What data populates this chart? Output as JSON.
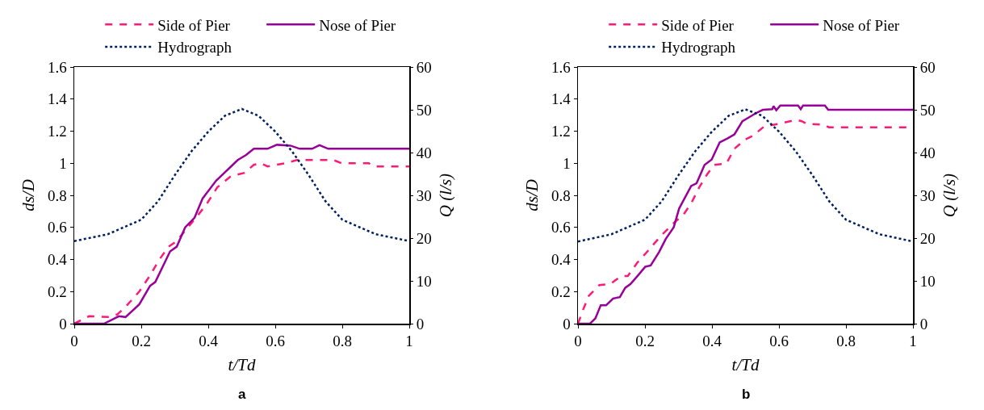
{
  "chart_data": [
    {
      "type": "line",
      "xlabel": "t/Td",
      "ylabel": "ds/D",
      "y2label": "Q (l/s)",
      "annotations": [
        "a"
      ],
      "xlim": [
        0,
        1
      ],
      "xticks": [
        0,
        0.2,
        0.4,
        0.6,
        0.8,
        1
      ],
      "ylim": [
        0,
        1.6
      ],
      "yticks": [
        0,
        0.2,
        0.4,
        0.6,
        0.8,
        1,
        1.2,
        1.4,
        1.6
      ],
      "y2lim": [
        0,
        60
      ],
      "y2ticks": [
        0,
        10,
        20,
        30,
        40,
        50,
        60
      ],
      "grid": false,
      "legend": "top",
      "marker": "none",
      "series": [
        {
          "name": "Side of Pier",
          "color": "#ff1a75",
          "line_style": "dashed",
          "x": [
            0,
            0.044,
            0.105,
            0.129,
            0.153,
            0.194,
            0.226,
            0.254,
            0.282,
            0.306,
            0.331,
            0.363,
            0.395,
            0.427,
            0.468,
            0.508,
            0.536,
            0.556,
            0.577,
            0.629,
            0.665,
            0.774,
            0.798,
            0.879,
            0.895,
            1
          ],
          "values": [
            0,
            0.046,
            0.041,
            0.058,
            0.104,
            0.2,
            0.3,
            0.4,
            0.48,
            0.515,
            0.58,
            0.66,
            0.745,
            0.85,
            0.92,
            0.94,
            0.99,
            1.0,
            0.98,
            1.0,
            1.02,
            1.02,
            1.0,
            1.0,
            0.98,
            0.98
          ]
        },
        {
          "name": "Nose of Pier",
          "color": "#990099",
          "line_style": "solid",
          "x": [
            0,
            0.089,
            0.133,
            0.153,
            0.194,
            0.226,
            0.242,
            0.286,
            0.306,
            0.331,
            0.359,
            0.383,
            0.423,
            0.488,
            0.512,
            0.536,
            0.577,
            0.605,
            0.645,
            0.673,
            0.71,
            0.732,
            0.758,
            1
          ],
          "values": [
            0,
            0,
            0.046,
            0.041,
            0.12,
            0.235,
            0.26,
            0.45,
            0.48,
            0.6,
            0.66,
            0.78,
            0.89,
            1.02,
            1.05,
            1.09,
            1.09,
            1.115,
            1.11,
            1.09,
            1.09,
            1.113,
            1.09,
            1.09
          ]
        },
        {
          "name": "Hydrograph",
          "color": "#002060",
          "line_style": "dotted",
          "axis": "y2",
          "x": [
            0,
            0.1,
            0.2,
            0.25,
            0.3,
            0.35,
            0.4,
            0.45,
            0.5,
            0.55,
            0.6,
            0.65,
            0.7,
            0.75,
            0.8,
            0.9,
            1
          ],
          "values": [
            19.3,
            20.9,
            24.3,
            28.6,
            34.7,
            40.3,
            44.9,
            48.6,
            50.2,
            48.6,
            44.9,
            40.3,
            34.7,
            28.6,
            24.3,
            20.9,
            19.3
          ]
        }
      ]
    },
    {
      "type": "line",
      "xlabel": "t/Td",
      "ylabel": "ds/D",
      "y2label": "Q (l/s)",
      "annotations": [
        "b"
      ],
      "xlim": [
        0,
        1
      ],
      "xticks": [
        0,
        0.2,
        0.4,
        0.6,
        0.8,
        1
      ],
      "ylim": [
        0,
        1.6
      ],
      "yticks": [
        0,
        0.2,
        0.4,
        0.6,
        0.8,
        1,
        1.2,
        1.4,
        1.6
      ],
      "y2lim": [
        0,
        60
      ],
      "y2ticks": [
        0,
        10,
        20,
        30,
        40,
        50,
        60
      ],
      "grid": false,
      "legend": "top",
      "marker": "none",
      "series": [
        {
          "name": "Side of Pier",
          "color": "#ff1a75",
          "line_style": "dashed",
          "x": [
            0,
            0.016,
            0.032,
            0.064,
            0.097,
            0.129,
            0.149,
            0.177,
            0.209,
            0.25,
            0.29,
            0.314,
            0.338,
            0.362,
            0.386,
            0.407,
            0.443,
            0.467,
            0.499,
            0.523,
            0.556,
            0.596,
            0.652,
            0.668,
            0.684,
            0.733,
            0.749,
            1
          ],
          "values": [
            0,
            0.09,
            0.173,
            0.24,
            0.248,
            0.297,
            0.297,
            0.38,
            0.454,
            0.553,
            0.635,
            0.677,
            0.75,
            0.85,
            0.932,
            0.99,
            0.998,
            1.09,
            1.148,
            1.172,
            1.23,
            1.244,
            1.271,
            1.262,
            1.245,
            1.241,
            1.224,
            1.224
          ]
        },
        {
          "name": "Nose of Pier",
          "color": "#990099",
          "line_style": "solid",
          "x": [
            0,
            0.036,
            0.052,
            0.068,
            0.084,
            0.105,
            0.125,
            0.141,
            0.157,
            0.181,
            0.201,
            0.217,
            0.242,
            0.262,
            0.286,
            0.302,
            0.338,
            0.354,
            0.378,
            0.399,
            0.423,
            0.447,
            0.467,
            0.491,
            0.511,
            0.531,
            0.552,
            0.58,
            0.584,
            0.592,
            0.604,
            0.657,
            0.665,
            0.672,
            0.737,
            0.747,
            1
          ],
          "values": [
            0,
            0,
            0.033,
            0.115,
            0.115,
            0.157,
            0.165,
            0.223,
            0.248,
            0.305,
            0.355,
            0.363,
            0.446,
            0.528,
            0.602,
            0.718,
            0.858,
            0.875,
            0.99,
            1.023,
            1.13,
            1.155,
            1.18,
            1.262,
            1.287,
            1.312,
            1.333,
            1.337,
            1.356,
            1.33,
            1.36,
            1.36,
            1.337,
            1.36,
            1.36,
            1.333,
            1.333
          ]
        },
        {
          "name": "Hydrograph",
          "color": "#002060",
          "line_style": "dotted",
          "axis": "y2",
          "x": [
            0,
            0.1,
            0.2,
            0.25,
            0.3,
            0.35,
            0.4,
            0.45,
            0.5,
            0.55,
            0.6,
            0.65,
            0.7,
            0.75,
            0.8,
            0.9,
            1
          ],
          "values": [
            19.2,
            20.9,
            24.3,
            28.6,
            34.7,
            40.3,
            44.9,
            48.6,
            50.1,
            48.6,
            44.9,
            40.3,
            34.7,
            28.6,
            24.3,
            20.9,
            19.2
          ]
        }
      ]
    }
  ]
}
